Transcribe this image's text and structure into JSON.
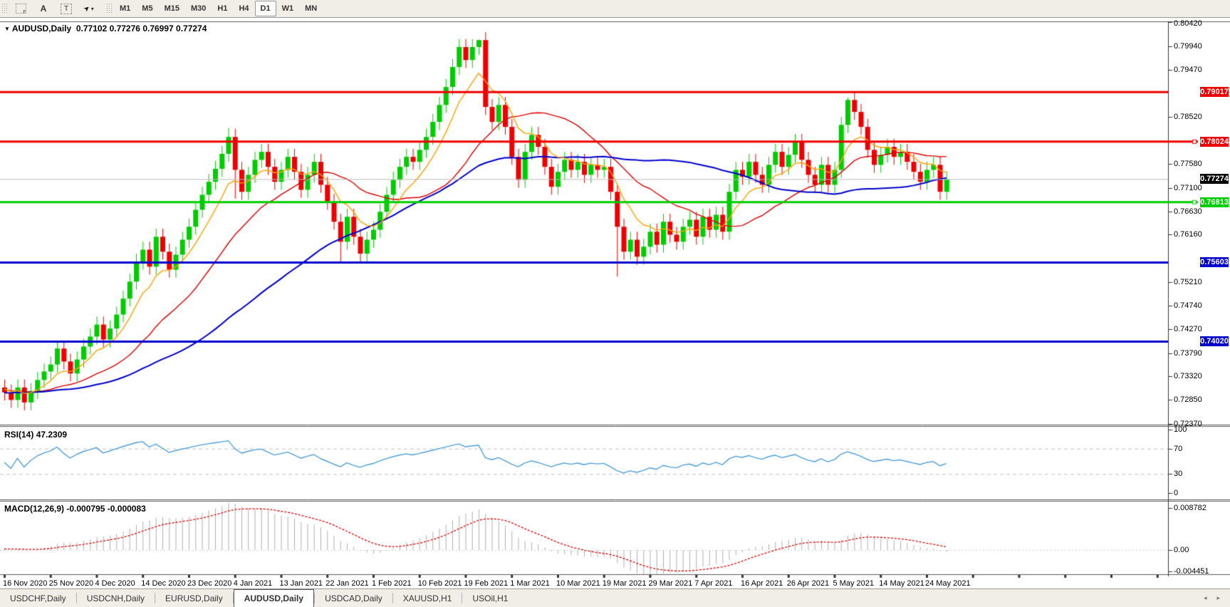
{
  "toolbar": {
    "icons": [
      {
        "name": "grid-f-icon",
        "glyph": "F"
      },
      {
        "name": "annotate-a-icon",
        "glyph": "A"
      },
      {
        "name": "text-tool-icon",
        "glyph": "T"
      },
      {
        "name": "cursor-tool-icon",
        "glyph": "➤"
      },
      {
        "name": "dropdown-arrow-icon",
        "glyph": "▾"
      }
    ],
    "timeframes": [
      "M1",
      "M5",
      "M15",
      "M30",
      "H1",
      "H4",
      "D1",
      "W1",
      "MN"
    ],
    "active_timeframe": "D1"
  },
  "header": {
    "dropdown_glyph": "▼",
    "symbol": "AUDUSD,Daily",
    "open": "0.77102",
    "high": "0.77276",
    "low": "0.76997",
    "close": "0.77274"
  },
  "indicator_labels": {
    "rsi_name": "RSI(14)",
    "rsi_value": "47.2309",
    "macd_name": "MACD(12,26,9)",
    "macd_value": "-0.000795",
    "macd_signal": "-0.000083"
  },
  "axis": {
    "price_ticks": [
      "0.80420",
      "0.79940",
      "0.79470",
      "0.78520",
      "0.77580",
      "0.77100",
      "0.76630",
      "0.76160",
      "0.75210",
      "0.74740",
      "0.74270",
      "0.73790",
      "0.73320",
      "0.72850",
      "0.72370"
    ],
    "rsi_ticks": [
      {
        "v": 100,
        "text": "100"
      },
      {
        "v": 70,
        "text": "70"
      },
      {
        "v": 30,
        "text": "30"
      },
      {
        "v": 0,
        "text": "0"
      }
    ],
    "macd_ticks": [
      {
        "v": 0.008782,
        "text": "0.008782"
      },
      {
        "v": 0,
        "text": "0.00"
      },
      {
        "v": -0.004451,
        "text": "-0.004451"
      }
    ],
    "badges": [
      {
        "text": "0.79017",
        "price": 0.79017,
        "color": "#ee0000",
        "selected": false,
        "current": false
      },
      {
        "text": "0.78024",
        "price": 0.78024,
        "color": "#ee0000",
        "selected": true,
        "current": false
      },
      {
        "text": "0.77274",
        "price": 0.77274,
        "color": "#000000",
        "selected": false,
        "current": true
      },
      {
        "text": "0.76813",
        "price": 0.76813,
        "color": "#00ce00",
        "selected": true,
        "current": false
      },
      {
        "text": "0.75603",
        "price": 0.75603,
        "color": "#0000cd",
        "selected": false,
        "current": false
      },
      {
        "text": "0.74020",
        "price": 0.7402,
        "color": "#0000cd",
        "selected": false,
        "current": false
      }
    ]
  },
  "dates": [
    "16 Nov 2020",
    "25 Nov 2020",
    "4 Dec 2020",
    "14 Dec 2020",
    "23 Dec 2020",
    "4 Jan 2021",
    "13 Jan 2021",
    "22 Jan 2021",
    "1 Feb 2021",
    "10 Feb 2021",
    "19 Feb 2021",
    "1 Mar 2021",
    "10 Mar 2021",
    "19 Mar 2021",
    "29 Mar 2021",
    "7 Apr 2021",
    "16 Apr 2021",
    "26 Apr 2021",
    "5 May 2021",
    "14 May 2021",
    "24 May 2021"
  ],
  "tabs": {
    "items": [
      {
        "label": "USDCHF,Daily",
        "active": false
      },
      {
        "label": "USDCNH,Daily",
        "active": false
      },
      {
        "label": "EURUSD,Daily",
        "active": false
      },
      {
        "label": "AUDUSD,Daily",
        "active": true
      },
      {
        "label": "USDCAD,Daily",
        "active": false
      },
      {
        "label": "XAUUSD,H1",
        "active": false
      },
      {
        "label": "USOil,H1",
        "active": false
      }
    ],
    "scroll_left_glyph": "◂",
    "scroll_right_glyph": "▸"
  },
  "colors": {
    "bull": "#00cc00",
    "bear": "#ee0000",
    "ma_fast": "#ffa200",
    "ma_mid": "#dd0000",
    "ma_slow": "#0000cc",
    "rsi_line": "#4f9fd8",
    "macd_hist": "#b0b0b0",
    "macd_signal": "#dd0000",
    "current_line": "#b8b8b8",
    "level_red": "#ee0000",
    "level_green": "#00ce00",
    "level_blue": "#0000cd"
  },
  "chart_data": {
    "type": "candlestick",
    "symbol": "AUDUSD",
    "timeframe": "Daily",
    "title": "AUDUSD,Daily",
    "y_range": [
      0.7237,
      0.8042
    ],
    "current_price": 0.77274,
    "ohlc_last": {
      "open": 0.77102,
      "high": 0.77276,
      "low": 0.76997,
      "close": 0.77274
    },
    "first_open": 0.731,
    "default_wick": 0.0016,
    "closes": [
      0.73,
      0.7285,
      0.731,
      0.728,
      0.7303,
      0.7325,
      0.7342,
      0.7356,
      0.7388,
      0.7362,
      0.7338,
      0.7366,
      0.7392,
      0.7412,
      0.7436,
      0.7406,
      0.7428,
      0.7456,
      0.7488,
      0.7522,
      0.7562,
      0.7586,
      0.7552,
      0.7612,
      0.7582,
      0.7546,
      0.7576,
      0.7606,
      0.7632,
      0.7666,
      0.7696,
      0.7722,
      0.7748,
      0.7778,
      0.7812,
      0.7746,
      0.7702,
      0.7736,
      0.7766,
      0.7782,
      0.7752,
      0.7722,
      0.7746,
      0.7772,
      0.7742,
      0.7706,
      0.7736,
      0.7762,
      0.7716,
      0.7682,
      0.7642,
      0.7602,
      0.7652,
      0.7612,
      0.7578,
      0.7606,
      0.7626,
      0.7662,
      0.7696,
      0.7726,
      0.7752,
      0.7772,
      0.7762,
      0.7786,
      0.7812,
      0.7842,
      0.7876,
      0.7912,
      0.7952,
      0.7992,
      0.7966,
      0.7992,
      0.8006,
      0.7872,
      0.7842,
      0.7876,
      0.7832,
      0.7772,
      0.7726,
      0.7782,
      0.7816,
      0.7792,
      0.7752,
      0.7712,
      0.7742,
      0.7766,
      0.7746,
      0.7762,
      0.7736,
      0.7756,
      0.7746,
      0.7752,
      0.7702,
      0.7632,
      0.7582,
      0.7606,
      0.7572,
      0.7592,
      0.7622,
      0.7596,
      0.7642,
      0.7616,
      0.7602,
      0.7632,
      0.7646,
      0.7612,
      0.7652,
      0.7626,
      0.7656,
      0.7622,
      0.7702,
      0.7746,
      0.7732,
      0.7762,
      0.7736,
      0.7716,
      0.7756,
      0.7782,
      0.7752,
      0.7776,
      0.7802,
      0.7766,
      0.7736,
      0.7716,
      0.7756,
      0.7716,
      0.7746,
      0.7836,
      0.7886,
      0.7862,
      0.7832,
      0.7786,
      0.7756,
      0.7776,
      0.7792,
      0.7772,
      0.7782,
      0.7762,
      0.7742,
      0.7722,
      0.7746,
      0.7756,
      0.7702,
      0.7727
    ],
    "wick_overrides": {
      "34": [
        0.783,
        null
      ],
      "35": [
        null,
        0.7688
      ],
      "51": [
        null,
        0.756
      ],
      "72": [
        0.8007,
        null
      ],
      "93": [
        null,
        0.7532
      ],
      "128": [
        0.7891,
        null
      ]
    },
    "levels": [
      {
        "price": 0.79017,
        "color": "#ee0000",
        "width": 3,
        "selected": false
      },
      {
        "price": 0.78024,
        "color": "#ee0000",
        "width": 3,
        "selected": true
      },
      {
        "price": 0.76813,
        "color": "#00ce00",
        "width": 3,
        "selected": true
      },
      {
        "price": 0.75603,
        "color": "#0000cd",
        "width": 3,
        "selected": false
      },
      {
        "price": 0.7402,
        "color": "#0000cd",
        "width": 3,
        "selected": false
      }
    ],
    "moving_averages": [
      {
        "name": "fast",
        "type": "ema",
        "period": 8,
        "color": "#ffa200",
        "width": 1.4
      },
      {
        "name": "mid",
        "type": "sma",
        "period": 20,
        "color": "#dd0000",
        "width": 1.4
      },
      {
        "name": "slow",
        "type": "sma",
        "period": 45,
        "color": "#0000cc",
        "width": 2
      }
    ],
    "rsi": {
      "period": 14,
      "last_value": 47.2309,
      "guide_levels": [
        70,
        30
      ],
      "range": [
        0,
        100
      ]
    },
    "macd": {
      "fast": 12,
      "slow": 26,
      "signal": 9,
      "last_value": -0.000795,
      "last_signal": -8.3e-05,
      "axis_max": 0.008782,
      "axis_min": -0.004451
    },
    "seed_history": {
      "count": 60,
      "base": 0.731,
      "drift": 5e-05,
      "wave": 0.0015
    }
  }
}
